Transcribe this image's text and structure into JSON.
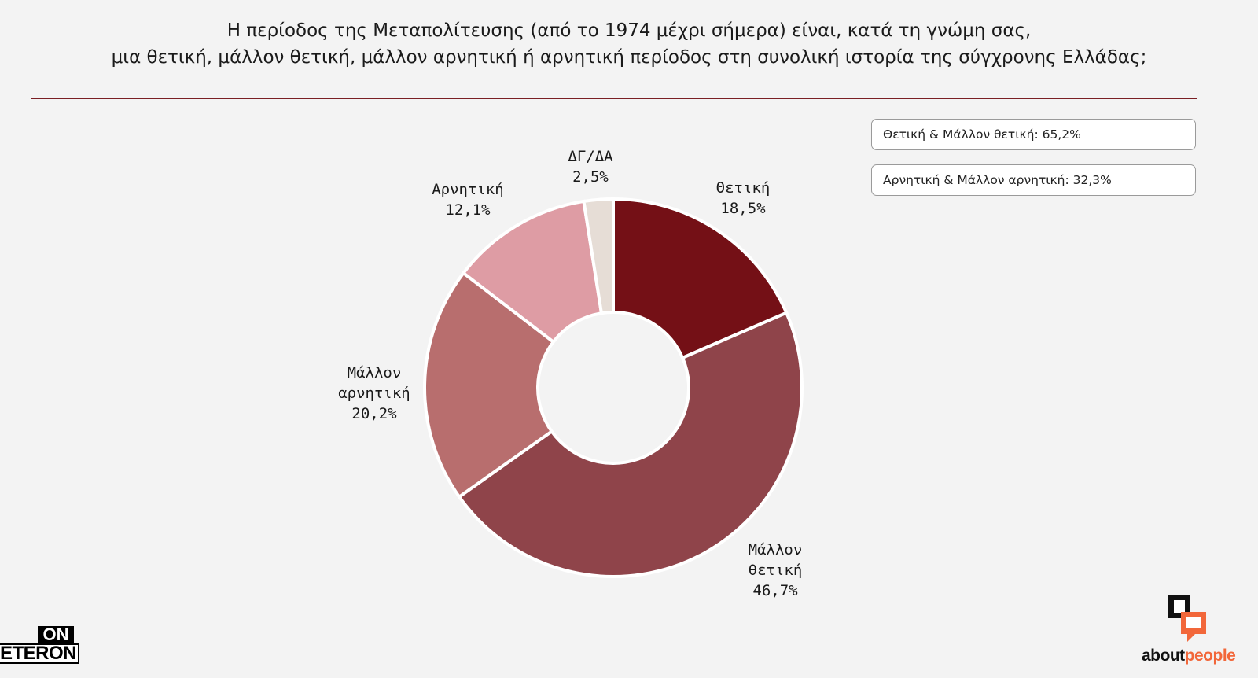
{
  "title": {
    "line1": "Η περίοδος της Μεταπολίτευσης (από το 1974 μέχρι σήμερα) είναι, κατά τη γνώμη σας,",
    "line2": "μια θετική, μάλλον θετική, μάλλον αρνητική ή αρνητική περίοδος στη συνολική ιστορία της σύγχρονης Ελλάδας;"
  },
  "summary": [
    "Θετική & Μάλλον θετική: 65,2%",
    "Αρνητική & Μάλλον αρνητική: 32,3%"
  ],
  "chart_data": {
    "type": "pie",
    "donut": true,
    "start": "12 o'clock, clockwise",
    "slices": [
      {
        "label": "Θετική",
        "value": 18.5,
        "value_text": "18,5%",
        "color": "#741016"
      },
      {
        "label": "Μάλλον θετική",
        "value": 46.7,
        "value_text": "46,7%",
        "color": "#8f444a"
      },
      {
        "label": "Μάλλον αρνητική",
        "value": 20.2,
        "value_text": "20,2%",
        "color": "#b86e6e"
      },
      {
        "label": "Αρνητική",
        "value": 12.1,
        "value_text": "12,1%",
        "color": "#de9ca4"
      },
      {
        "label": "ΔΓ/ΔΑ",
        "value": 2.5,
        "value_text": "2,5%",
        "color": "#e6ddd6"
      }
    ]
  },
  "logos": {
    "left_top": "ON",
    "left_bottom": "ETERON",
    "right_brand": "about",
    "right_brand_accent": "people"
  },
  "colors": {
    "background": "#f3f3f3",
    "rule": "#7a1f24",
    "brand_accent": "#f2673a"
  }
}
